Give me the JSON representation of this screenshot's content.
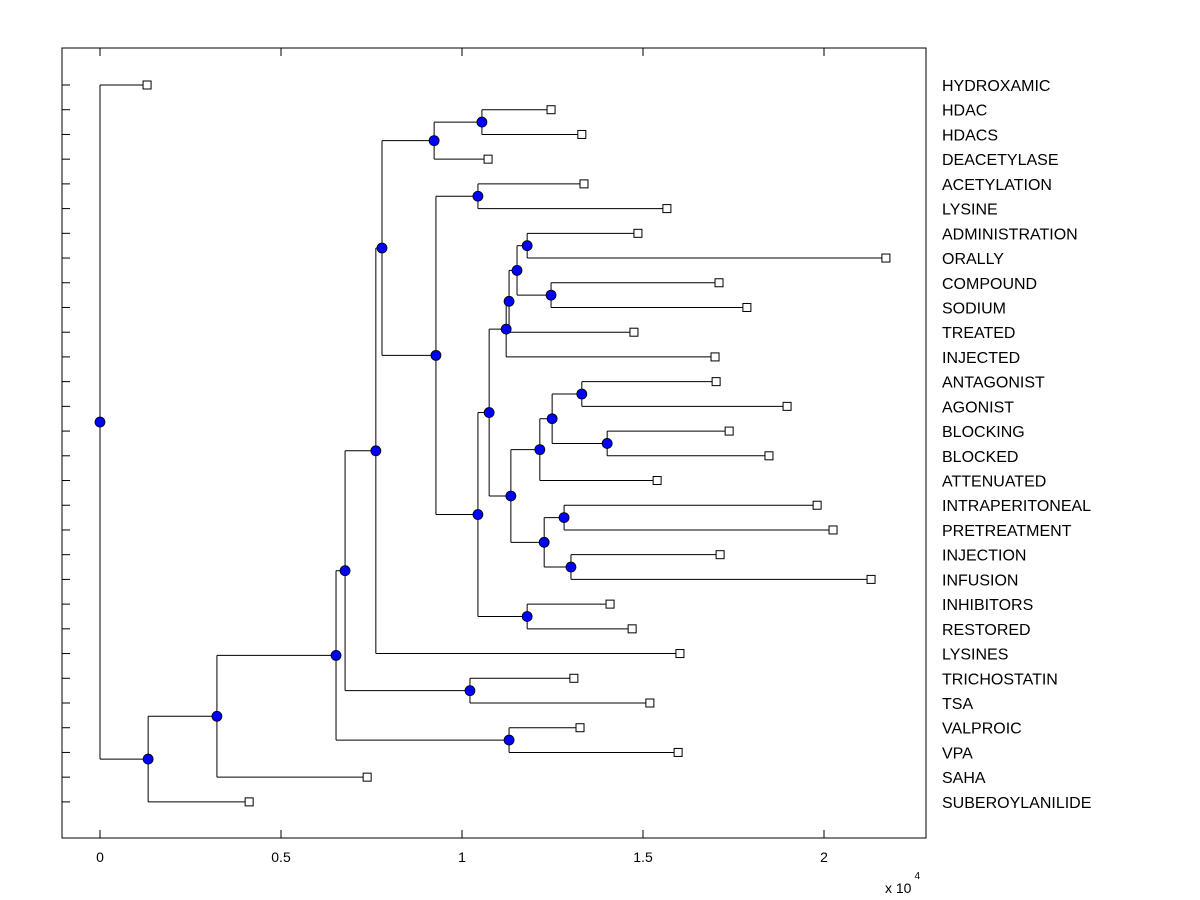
{
  "chart_data": {
    "type": "dendrogram",
    "orientation": "horizontal, root at left, leaves at right",
    "x_ticks": [
      0,
      0.5,
      1,
      1.5,
      2
    ],
    "x_tick_labels": [
      "0",
      "0.5",
      "1",
      "1.5",
      "2"
    ],
    "xlim": [
      -0.105,
      2.28
    ],
    "x_multiplier_label": "x 10",
    "x_multiplier_exponent": "4",
    "grid": false,
    "colors": {
      "node_fill": "#0000ff",
      "line": "#000000",
      "leaf_marker_fill": "#ffffff"
    },
    "leaf_labels": [
      "HYDROXAMIC",
      "HDAC",
      "HDACS",
      "DEACETYLASE",
      "ACETYLATION",
      "LYSINE",
      "ADMINISTRATION",
      "ORALLY",
      "COMPOUND",
      "SODIUM",
      "TREATED",
      "INJECTED",
      "ANTAGONIST",
      "AGONIST",
      "BLOCKING",
      "BLOCKED",
      "ATTENUATED",
      "INTRAPERITONEAL",
      "PRETREATMENT",
      "INJECTION",
      "INFUSION",
      "INHIBITORS",
      "RESTORED",
      "LYSINES",
      "TRICHOSTATIN",
      "TSA",
      "VALPROIC",
      "VPA",
      "SAHA",
      "SUBEROYLANILIDE"
    ],
    "tree": {
      "x": 0,
      "children": [
        {
          "leaf": 0,
          "x": 0.13
        },
        {
          "x": 0.133,
          "children": [
            {
              "x": 0.323,
              "children": [
                {
                  "x": 0.652,
                  "children": [
                    {
                      "x": 0.677,
                      "children": [
                        {
                          "x": 0.762,
                          "children": [
                            {
                              "x": 0.779,
                              "children": [
                                {
                                  "x": 0.923,
                                  "children": [
                                    {
                                      "x": 1.055,
                                      "children": [
                                        {
                                          "leaf": 1,
                                          "x": 1.246
                                        },
                                        {
                                          "leaf": 2,
                                          "x": 1.331
                                        }
                                      ]
                                    },
                                    {
                                      "leaf": 3,
                                      "x": 1.072
                                    }
                                  ]
                                },
                                {
                                  "x": 0.928,
                                  "children": [
                                    {
                                      "x": 1.044,
                                      "children": [
                                        {
                                          "leaf": 4,
                                          "x": 1.337
                                        },
                                        {
                                          "leaf": 5,
                                          "x": 1.566
                                        }
                                      ]
                                    },
                                    {
                                      "x": 1.044,
                                      "children": [
                                        {
                                          "x": 1.075,
                                          "children": [
                                            {
                                              "x": 1.122,
                                              "children": [
                                                {
                                                  "x": 1.13,
                                                  "children": [
                                                    {
                                                      "x": 1.152,
                                                      "children": [
                                                        {
                                                          "x": 1.18,
                                                          "children": [
                                                            {
                                                              "leaf": 6,
                                                              "x": 1.486
                                                            },
                                                            {
                                                              "leaf": 7,
                                                              "x": 2.171
                                                            }
                                                          ]
                                                        },
                                                        {
                                                          "x": 1.246,
                                                          "children": [
                                                            {
                                                              "leaf": 8,
                                                              "x": 1.71
                                                            },
                                                            {
                                                              "leaf": 9,
                                                              "x": 1.787
                                                            }
                                                          ]
                                                        }
                                                      ]
                                                    },
                                                    {
                                                      "leaf": 10,
                                                      "x": 1.475
                                                    }
                                                  ]
                                                },
                                                {
                                                  "leaf": 11,
                                                  "x": 1.699
                                                }
                                              ]
                                            },
                                            {
                                              "x": 1.135,
                                              "children": [
                                                {
                                                  "x": 1.215,
                                                  "children": [
                                                    {
                                                      "x": 1.249,
                                                      "children": [
                                                        {
                                                          "x": 1.331,
                                                          "children": [
                                                            {
                                                              "leaf": 12,
                                                              "x": 1.702
                                                            },
                                                            {
                                                              "leaf": 13,
                                                              "x": 1.898
                                                            }
                                                          ]
                                                        },
                                                        {
                                                          "x": 1.401,
                                                          "children": [
                                                            {
                                                              "leaf": 14,
                                                              "x": 1.738
                                                            },
                                                            {
                                                              "leaf": 15,
                                                              "x": 1.848
                                                            }
                                                          ]
                                                        }
                                                      ]
                                                    },
                                                    {
                                                      "leaf": 16,
                                                      "x": 1.539
                                                    }
                                                  ]
                                                },
                                                {
                                                  "x": 1.227,
                                                  "children": [
                                                    {
                                                      "x": 1.282,
                                                      "children": [
                                                        {
                                                          "leaf": 17,
                                                          "x": 1.981
                                                        },
                                                        {
                                                          "leaf": 18,
                                                          "x": 2.025
                                                        }
                                                      ]
                                                    },
                                                    {
                                                      "x": 1.301,
                                                      "children": [
                                                        {
                                                          "leaf": 19,
                                                          "x": 1.713
                                                        },
                                                        {
                                                          "leaf": 20,
                                                          "x": 2.13
                                                        }
                                                      ]
                                                    }
                                                  ]
                                                }
                                              ]
                                            }
                                          ]
                                        },
                                        {
                                          "x": 1.18,
                                          "children": [
                                            {
                                              "leaf": 21,
                                              "x": 1.409
                                            },
                                            {
                                              "leaf": 22,
                                              "x": 1.47
                                            }
                                          ]
                                        }
                                      ]
                                    }
                                  ]
                                }
                              ]
                            },
                            {
                              "leaf": 23,
                              "x": 1.602
                            }
                          ]
                        },
                        {
                          "x": 1.022,
                          "children": [
                            {
                              "leaf": 24,
                              "x": 1.309
                            },
                            {
                              "leaf": 25,
                              "x": 1.519
                            }
                          ]
                        }
                      ]
                    },
                    {
                      "x": 1.13,
                      "children": [
                        {
                          "leaf": 26,
                          "x": 1.326
                        },
                        {
                          "leaf": 27,
                          "x": 1.597
                        }
                      ]
                    }
                  ]
                },
                {
                  "leaf": 28,
                  "x": 0.738
                }
              ]
            },
            {
              "leaf": 29,
              "x": 0.412
            }
          ]
        }
      ]
    }
  }
}
